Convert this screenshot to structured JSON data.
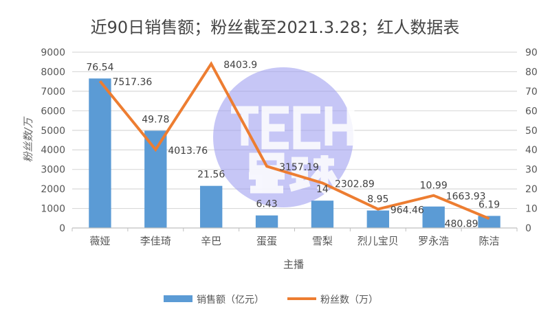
{
  "chart_data": {
    "type": "bar+line",
    "title": "近90日销售额；粉丝截至2021.3.28；红人数据表",
    "xlabel": "主播",
    "ylabel_left": "粉丝数/万",
    "ylabel_right": "",
    "categories": [
      "薇娅",
      "李佳琦",
      "辛巴",
      "蛋蛋",
      "雪梨",
      "烈儿宝贝",
      "罗永浩",
      "陈洁"
    ],
    "series": [
      {
        "name": "销售额（亿元）",
        "type": "bar",
        "axis": "right",
        "color": "#5b9bd5",
        "values": [
          76.54,
          49.78,
          21.56,
          6.43,
          14,
          8.95,
          10.99,
          6.19
        ]
      },
      {
        "name": "粉丝数（万）",
        "type": "line",
        "axis": "left",
        "color": "#ed7d31",
        "values": [
          7517.36,
          4013.76,
          8403.9,
          3157.19,
          2302.89,
          964.46,
          1663.93,
          480.89
        ]
      }
    ],
    "ylim_left": [
      0,
      9000
    ],
    "ylim_right": [
      0,
      90
    ],
    "yticks_left": [
      "0",
      "1000",
      "2000",
      "3000",
      "4000",
      "5000",
      "6000",
      "7000",
      "8000",
      "9000"
    ],
    "yticks_right": [
      "0",
      "10",
      "20",
      "30",
      "40",
      "50",
      "60",
      "70",
      "80",
      "90"
    ],
    "grid": true,
    "legend_position": "bottom"
  },
  "watermark": {
    "line1": "TECH",
    "line2": "星球",
    "color": "#a0a0f0"
  }
}
